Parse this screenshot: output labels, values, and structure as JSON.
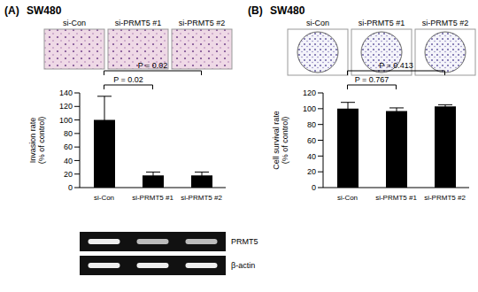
{
  "chart_data": [
    {
      "type": "bar",
      "label": "(A)",
      "title": "SW480",
      "categories": [
        "si-Con",
        "si-PRMT5 #1",
        "si-PRMT5 #2"
      ],
      "values": [
        100,
        18,
        18
      ],
      "errors": [
        35,
        5,
        5
      ],
      "color": "#000000",
      "ylabel": "Invasion rate (% of control)",
      "ylim": [
        0,
        140
      ],
      "yticks": [
        0,
        20,
        40,
        60,
        80,
        100,
        120,
        140
      ],
      "annotations": [
        {
          "text": "P = 0.02",
          "from": "si-Con",
          "to": "si-PRMT5 #2"
        },
        {
          "text": "P = 0.02",
          "from": "si-Con",
          "to": "si-PRMT5 #1"
        }
      ],
      "blot_labels": [
        "PRMT5",
        "β-actin"
      ]
    },
    {
      "type": "bar",
      "label": "(B)",
      "title": "SW480",
      "categories": [
        "si-Con",
        "si-PRMT5 #1",
        "si-PRMT5 #2"
      ],
      "values": [
        100,
        97,
        103
      ],
      "errors": [
        8,
        4,
        2
      ],
      "color": "#000000",
      "ylabel": "Cell survival rate (% of control)",
      "ylim": [
        0,
        120
      ],
      "yticks": [
        0,
        20,
        40,
        60,
        80,
        100,
        120
      ],
      "annotations": [
        {
          "text": "P = 0.413",
          "from": "si-Con",
          "to": "si-PRMT5 #2"
        },
        {
          "text": "P = 0.767",
          "from": "si-Con",
          "to": "si-PRMT5 #1"
        }
      ]
    }
  ]
}
